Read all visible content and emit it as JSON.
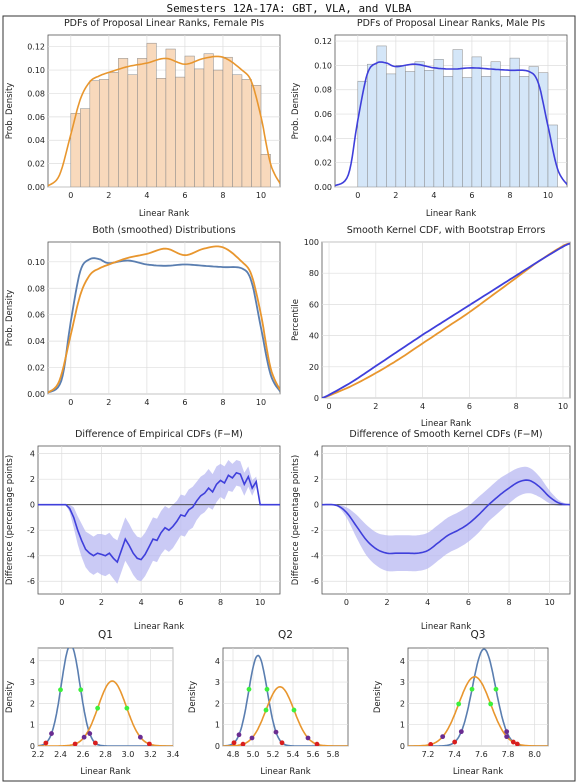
{
  "page": {
    "title": "Semesters 12A-17A:  GBT, VLA, and VLBA"
  },
  "colors": {
    "female": "#E8962E",
    "female_fill": "#F8D9BC",
    "male": "#3F3FDB",
    "male_fill": "#D4E6F8",
    "combined_male": "#5A7EB0",
    "band": "#B8B8F2",
    "point_green": "#3CF03C",
    "point_purple": "#6A2C91",
    "point_red": "#D81E1E"
  },
  "chart_data": [
    {
      "id": "hist_female",
      "type": "bar",
      "title": "PDFs of Proposal Linear Ranks, Female PIs",
      "xlabel": "Linear Rank",
      "ylabel": "Prob. Density",
      "xlim": [
        -1.2,
        11.0
      ],
      "ylim": [
        0,
        0.13
      ],
      "xticks": [
        0,
        2,
        4,
        6,
        8,
        10
      ],
      "yticks": [
        0.0,
        0.02,
        0.04,
        0.06,
        0.08,
        0.1,
        0.12
      ],
      "ytick_labels": [
        "0.00",
        "0.02",
        "0.04",
        "0.06",
        "0.08",
        "0.10",
        "0.12"
      ],
      "bin_width": 0.5,
      "bins_start": 0,
      "values": [
        0.063,
        0.067,
        0.091,
        0.092,
        0.098,
        0.11,
        0.096,
        0.11,
        0.123,
        0.093,
        0.118,
        0.094,
        0.112,
        0.101,
        0.114,
        0.1,
        0.111,
        0.096,
        0.092,
        0.087,
        0.028
      ],
      "curve": {
        "x": [
          -1.2,
          -0.6,
          0,
          0.5,
          1,
          1.5,
          2,
          3,
          4,
          5,
          6,
          7,
          8,
          9,
          9.5,
          10,
          10.5,
          11.0
        ],
        "y": [
          0.001,
          0.01,
          0.045,
          0.075,
          0.09,
          0.095,
          0.098,
          0.103,
          0.106,
          0.11,
          0.105,
          0.11,
          0.111,
          0.1,
          0.09,
          0.06,
          0.02,
          0.003
        ]
      }
    },
    {
      "id": "hist_male",
      "type": "bar",
      "title": "PDFs of Proposal Linear Ranks, Male PIs",
      "xlabel": "Linear Rank",
      "ylabel": "Prob. Density",
      "xlim": [
        -1.2,
        11.0
      ],
      "ylim": [
        0,
        0.125
      ],
      "xticks": [
        0,
        2,
        4,
        6,
        8,
        10
      ],
      "yticks": [
        0.0,
        0.02,
        0.04,
        0.06,
        0.08,
        0.1,
        0.12
      ],
      "ytick_labels": [
        "0.00",
        "0.02",
        "0.04",
        "0.06",
        "0.08",
        "0.10",
        "0.12"
      ],
      "bin_width": 0.5,
      "bins_start": 0,
      "values": [
        0.087,
        0.101,
        0.116,
        0.093,
        0.1,
        0.095,
        0.103,
        0.096,
        0.105,
        0.091,
        0.113,
        0.09,
        0.107,
        0.091,
        0.103,
        0.091,
        0.106,
        0.091,
        0.099,
        0.094,
        0.051
      ],
      "curve": {
        "x": [
          -1.2,
          -0.5,
          0,
          0.5,
          1,
          1.5,
          2,
          3,
          4,
          5,
          6,
          7,
          8,
          9,
          9.5,
          10,
          10.5,
          11.0
        ],
        "y": [
          0.001,
          0.01,
          0.055,
          0.093,
          0.102,
          0.102,
          0.099,
          0.101,
          0.098,
          0.097,
          0.098,
          0.097,
          0.096,
          0.095,
          0.085,
          0.05,
          0.015,
          0.002
        ]
      }
    },
    {
      "id": "both_smoothed",
      "type": "line",
      "title": "Both (smoothed) Distributions",
      "xlabel": "",
      "ylabel": "Prob. Density",
      "xlim": [
        -1.2,
        11.0
      ],
      "ylim": [
        0,
        0.115
      ],
      "xticks": [
        0,
        2,
        4,
        6,
        8,
        10
      ],
      "yticks": [
        0.0,
        0.02,
        0.04,
        0.06,
        0.08,
        0.1
      ],
      "ytick_labels": [
        "0.00",
        "0.02",
        "0.04",
        "0.06",
        "0.08",
        "0.10"
      ],
      "series": [
        {
          "color_key": "combined_male",
          "x": [
            -1.2,
            -0.5,
            0,
            0.5,
            1,
            1.5,
            2,
            3,
            4,
            5,
            6,
            7,
            8,
            9,
            9.5,
            10,
            10.5,
            11.0
          ],
          "y": [
            0.001,
            0.01,
            0.055,
            0.093,
            0.102,
            0.102,
            0.099,
            0.101,
            0.098,
            0.097,
            0.098,
            0.097,
            0.096,
            0.095,
            0.085,
            0.05,
            0.015,
            0.002
          ]
        },
        {
          "color_key": "female",
          "x": [
            -1.2,
            -0.6,
            0,
            0.5,
            1,
            1.5,
            2,
            3,
            4,
            5,
            6,
            7,
            8,
            9,
            9.5,
            10,
            10.5,
            11.0
          ],
          "y": [
            0.001,
            0.01,
            0.045,
            0.075,
            0.09,
            0.095,
            0.098,
            0.103,
            0.106,
            0.11,
            0.105,
            0.11,
            0.111,
            0.1,
            0.09,
            0.06,
            0.02,
            0.003
          ]
        }
      ]
    },
    {
      "id": "cdf",
      "type": "line",
      "title": "Smooth Kernel CDF, with Bootstrap Errors",
      "xlabel": "Linear Rank",
      "ylabel": "Percentile",
      "xlim": [
        -0.3,
        10.3
      ],
      "ylim": [
        0,
        100
      ],
      "xticks": [
        0,
        2,
        4,
        6,
        8,
        10
      ],
      "yticks": [
        0,
        20,
        40,
        60,
        80,
        100
      ],
      "ytick_labels": [
        "0",
        "20",
        "40",
        "60",
        "80",
        "100"
      ],
      "series": [
        {
          "color_key": "female",
          "x": [
            -0.3,
            0,
            1,
            2,
            3,
            4,
            5,
            6,
            7,
            8,
            9,
            10,
            10.3
          ],
          "y": [
            0,
            1.5,
            8,
            16,
            25,
            35,
            45,
            55,
            66,
            77,
            88,
            97.5,
            99
          ]
        },
        {
          "color_key": "male",
          "x": [
            -0.3,
            0,
            1,
            2,
            3,
            4,
            5,
            6,
            7,
            8,
            9,
            10,
            10.3
          ],
          "y": [
            0,
            2,
            10.5,
            20.5,
            30.5,
            40.5,
            50,
            59.5,
            69,
            78.5,
            88,
            97,
            99
          ]
        }
      ]
    },
    {
      "id": "diff_empirical",
      "type": "area",
      "title": "Difference of Empirical CDFs (F−M)",
      "xlabel": "Linear Rank",
      "ylabel": "Difference (percentage points)",
      "xlim": [
        -1.2,
        11.0
      ],
      "ylim": [
        -7,
        4.6
      ],
      "xticks": [
        0,
        2,
        4,
        6,
        8,
        10
      ],
      "yticks": [
        -6,
        -4,
        -2,
        0,
        2,
        4
      ],
      "ytick_labels": [
        "-6",
        "-4",
        "-2",
        "0",
        "2",
        "4"
      ],
      "x": [
        -1.2,
        0.2,
        0.4,
        0.6,
        0.8,
        1.0,
        1.2,
        1.4,
        1.6,
        1.8,
        2.0,
        2.2,
        2.4,
        2.6,
        2.8,
        3.0,
        3.2,
        3.4,
        3.6,
        3.8,
        4.0,
        4.2,
        4.4,
        4.6,
        4.8,
        5.0,
        5.2,
        5.4,
        5.6,
        5.8,
        6.0,
        6.2,
        6.4,
        6.6,
        6.8,
        7.0,
        7.2,
        7.4,
        7.6,
        7.8,
        8.0,
        8.2,
        8.4,
        8.6,
        8.8,
        9.0,
        9.2,
        9.4,
        9.6,
        9.8,
        10.0,
        11.0
      ],
      "y": [
        0,
        0,
        -0.3,
        -1.0,
        -2.0,
        -2.8,
        -3.5,
        -3.8,
        -4.0,
        -3.8,
        -3.9,
        -4.0,
        -3.8,
        -4.2,
        -4.5,
        -3.6,
        -2.7,
        -3.2,
        -3.8,
        -4.2,
        -4.3,
        -3.9,
        -3.3,
        -2.7,
        -2.8,
        -2.2,
        -1.8,
        -2.0,
        -1.7,
        -1.3,
        -0.8,
        -0.9,
        -0.4,
        -0.2,
        0.3,
        0.7,
        0.9,
        1.3,
        1.0,
        1.6,
        1.9,
        1.7,
        2.3,
        2.1,
        2.5,
        2.4,
        1.6,
        2.2,
        1.3,
        1.8,
        0,
        0
      ],
      "band_half_width": [
        0,
        0,
        0.3,
        0.8,
        1.1,
        1.3,
        1.4,
        1.5,
        1.5,
        1.5,
        1.6,
        1.6,
        1.6,
        1.6,
        1.7,
        1.7,
        1.7,
        1.7,
        1.7,
        1.7,
        1.7,
        1.7,
        1.7,
        1.7,
        1.7,
        1.7,
        1.7,
        1.7,
        1.7,
        1.6,
        1.6,
        1.6,
        1.6,
        1.6,
        1.5,
        1.5,
        1.5,
        1.5,
        1.4,
        1.4,
        1.3,
        1.3,
        1.2,
        1.1,
        1.0,
        1.0,
        0.9,
        0.8,
        0.6,
        0.4,
        0,
        0
      ]
    },
    {
      "id": "diff_smooth",
      "type": "area",
      "title": "Difference of Smooth Kernel CDFs (F−M)",
      "xlabel": "Linear Rank",
      "ylabel": "Difference (percentage points)",
      "xlim": [
        -1.2,
        11.0
      ],
      "ylim": [
        -7,
        4.6
      ],
      "xticks": [
        0,
        2,
        4,
        6,
        8,
        10
      ],
      "yticks": [
        -6,
        -4,
        -2,
        0,
        2,
        4
      ],
      "ytick_labels": [
        "-6",
        "-4",
        "-2",
        "0",
        "2",
        "4"
      ],
      "x": [
        -1.2,
        -0.5,
        0,
        0.5,
        1,
        1.5,
        2,
        2.5,
        3,
        3.5,
        4,
        4.5,
        5,
        5.5,
        6,
        6.5,
        7,
        7.5,
        8,
        8.5,
        9,
        9.5,
        10,
        10.5,
        11.0
      ],
      "y": [
        0,
        -0.05,
        -0.6,
        -1.7,
        -2.8,
        -3.5,
        -3.8,
        -3.8,
        -3.8,
        -3.8,
        -3.6,
        -3.0,
        -2.4,
        -2.0,
        -1.5,
        -0.8,
        0,
        0.7,
        1.3,
        1.8,
        1.9,
        1.4,
        0.6,
        0.1,
        0
      ],
      "band_half_width": [
        0,
        0.05,
        0.4,
        0.9,
        1.2,
        1.3,
        1.4,
        1.4,
        1.4,
        1.4,
        1.4,
        1.4,
        1.4,
        1.4,
        1.4,
        1.4,
        1.3,
        1.3,
        1.2,
        1.1,
        1.0,
        0.8,
        0.5,
        0.2,
        0
      ]
    },
    {
      "id": "q1",
      "type": "line",
      "title": "Q1",
      "xlabel": "Linear Rank",
      "ylabel": "Density",
      "xlim": [
        2.2,
        3.4
      ],
      "ylim": [
        0,
        4.6
      ],
      "xticks": [
        2.2,
        2.4,
        2.6,
        2.8,
        3.0,
        3.2,
        3.4
      ],
      "xtick_labels": [
        "2.2",
        "2.4",
        "2.6",
        "2.8",
        "3.0",
        "3.2",
        "3.4"
      ],
      "yticks": [
        0,
        1,
        2,
        3,
        4
      ],
      "ytick_labels": [
        "0",
        "1",
        "2",
        "3",
        "4"
      ],
      "series": [
        {
          "color_key": "combined_male",
          "mean": 2.49,
          "sd": 0.083,
          "peak": 4.75
        },
        {
          "color_key": "female",
          "mean": 2.86,
          "sd": 0.125,
          "peak": 3.05
        }
      ],
      "markers": [
        {
          "x": 2.4,
          "series": 0,
          "color_key": "point_green"
        },
        {
          "x": 2.58,
          "series": 0,
          "color_key": "point_green"
        },
        {
          "x": 2.32,
          "series": 0,
          "color_key": "point_purple"
        },
        {
          "x": 2.66,
          "series": 0,
          "color_key": "point_purple"
        },
        {
          "x": 2.27,
          "series": 0,
          "color_key": "point_red"
        },
        {
          "x": 2.71,
          "series": 0,
          "color_key": "point_red"
        },
        {
          "x": 2.73,
          "series": 1,
          "color_key": "point_green"
        },
        {
          "x": 2.99,
          "series": 1,
          "color_key": "point_green"
        },
        {
          "x": 2.61,
          "series": 1,
          "color_key": "point_purple"
        },
        {
          "x": 3.11,
          "series": 1,
          "color_key": "point_purple"
        },
        {
          "x": 2.53,
          "series": 1,
          "color_key": "point_red"
        },
        {
          "x": 3.19,
          "series": 1,
          "color_key": "point_red"
        }
      ]
    },
    {
      "id": "q2",
      "type": "line",
      "title": "Q2",
      "xlabel": "Linear Rank",
      "ylabel": "Density",
      "xlim": [
        4.7,
        5.95
      ],
      "ylim": [
        0,
        4.6
      ],
      "xticks": [
        4.8,
        5.0,
        5.2,
        5.4,
        5.6,
        5.8
      ],
      "xtick_labels": [
        "4.8",
        "5.0",
        "5.2",
        "5.4",
        "5.6",
        "5.8"
      ],
      "yticks": [
        0,
        1,
        2,
        3,
        4
      ],
      "ytick_labels": [
        "0",
        "1",
        "2",
        "3",
        "4"
      ],
      "series": [
        {
          "color_key": "combined_male",
          "mean": 5.05,
          "sd": 0.093,
          "peak": 4.25
        },
        {
          "color_key": "female",
          "mean": 5.27,
          "sd": 0.14,
          "peak": 2.78
        }
      ],
      "markers": [
        {
          "x": 4.96,
          "series": 0,
          "color_key": "point_green"
        },
        {
          "x": 5.14,
          "series": 0,
          "color_key": "point_green"
        },
        {
          "x": 4.86,
          "series": 0,
          "color_key": "point_purple"
        },
        {
          "x": 5.23,
          "series": 0,
          "color_key": "point_purple"
        },
        {
          "x": 4.81,
          "series": 0,
          "color_key": "point_red"
        },
        {
          "x": 5.29,
          "series": 0,
          "color_key": "point_red"
        },
        {
          "x": 5.13,
          "series": 1,
          "color_key": "point_green"
        },
        {
          "x": 5.41,
          "series": 1,
          "color_key": "point_green"
        },
        {
          "x": 4.99,
          "series": 1,
          "color_key": "point_purple"
        },
        {
          "x": 5.55,
          "series": 1,
          "color_key": "point_purple"
        },
        {
          "x": 4.9,
          "series": 1,
          "color_key": "point_red"
        },
        {
          "x": 5.64,
          "series": 1,
          "color_key": "point_red"
        }
      ]
    },
    {
      "id": "q3",
      "type": "line",
      "title": "Q3",
      "xlabel": "Linear Rank",
      "ylabel": "Density",
      "xlim": [
        7.05,
        8.1
      ],
      "ylim": [
        0,
        4.6
      ],
      "xticks": [
        7.2,
        7.4,
        7.6,
        7.8,
        8.0
      ],
      "xtick_labels": [
        "7.2",
        "7.4",
        "7.6",
        "7.8",
        "8.0"
      ],
      "yticks": [
        0,
        1,
        2,
        3,
        4
      ],
      "ytick_labels": [
        "0",
        "1",
        "2",
        "3",
        "4"
      ],
      "series": [
        {
          "color_key": "combined_male",
          "mean": 7.62,
          "sd": 0.087,
          "peak": 4.55
        },
        {
          "color_key": "female",
          "mean": 7.55,
          "sd": 0.12,
          "peak": 3.25
        }
      ],
      "markers": [
        {
          "x": 7.53,
          "series": 0,
          "color_key": "point_green"
        },
        {
          "x": 7.71,
          "series": 0,
          "color_key": "point_green"
        },
        {
          "x": 7.45,
          "series": 0,
          "color_key": "point_purple"
        },
        {
          "x": 7.79,
          "series": 0,
          "color_key": "point_purple"
        },
        {
          "x": 7.4,
          "series": 0,
          "color_key": "point_red"
        },
        {
          "x": 7.84,
          "series": 0,
          "color_key": "point_red"
        },
        {
          "x": 7.43,
          "series": 1,
          "color_key": "point_green"
        },
        {
          "x": 7.67,
          "series": 1,
          "color_key": "point_green"
        },
        {
          "x": 7.31,
          "series": 1,
          "color_key": "point_purple"
        },
        {
          "x": 7.79,
          "series": 1,
          "color_key": "point_purple"
        },
        {
          "x": 7.22,
          "series": 1,
          "color_key": "point_red"
        },
        {
          "x": 7.87,
          "series": 1,
          "color_key": "point_red"
        }
      ]
    }
  ]
}
